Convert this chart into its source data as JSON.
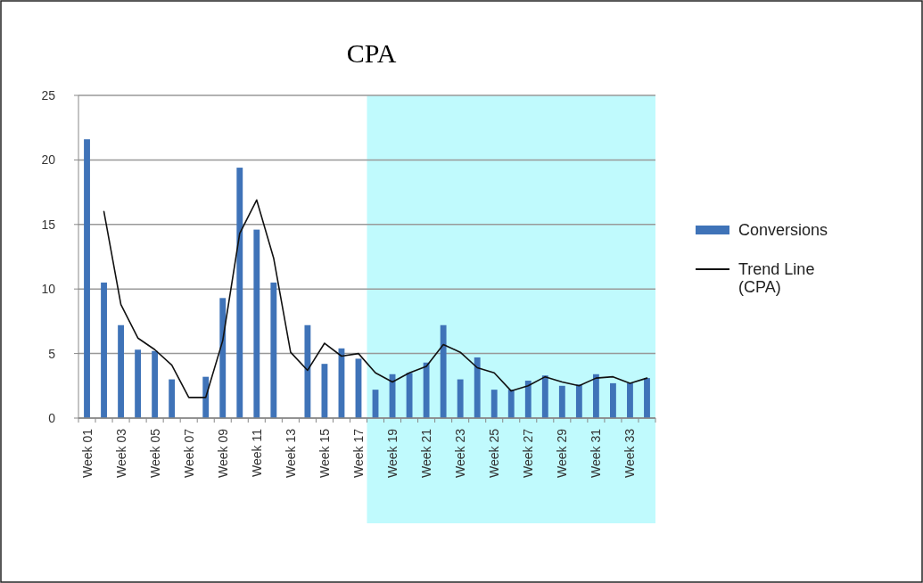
{
  "chart_data": {
    "type": "bar",
    "title": "CPA",
    "categories": [
      "Week 01",
      null,
      "Week 03",
      null,
      "Week 05",
      null,
      "Week 07",
      null,
      "Week 09",
      null,
      "Week 11",
      null,
      "Week 13",
      null,
      "Week 15",
      null,
      "Week 17",
      null,
      "Week 19",
      null,
      "Week 21",
      null,
      "Week 23",
      null,
      "Week 25",
      null,
      "Week 27",
      null,
      "Week 29",
      null,
      "Week 31",
      null,
      "Week 33",
      null
    ],
    "series": [
      {
        "name": "Conversions",
        "color": "#3f73b8",
        "values": [
          21.6,
          10.5,
          7.2,
          5.3,
          5.2,
          3.0,
          null,
          3.2,
          9.3,
          19.4,
          14.6,
          10.5,
          null,
          7.2,
          4.2,
          5.4,
          4.6,
          2.2,
          3.4,
          3.5,
          4.3,
          7.2,
          3.0,
          4.7,
          2.2,
          2.2,
          2.9,
          3.3,
          2.5,
          2.6,
          3.4,
          2.7,
          2.7,
          3.1
        ]
      },
      {
        "name": "Trend Line (CPA)",
        "type": "line",
        "color": "#111111",
        "values": [
          null,
          16.0,
          8.8,
          6.2,
          5.3,
          4.1,
          1.6,
          1.6,
          6.0,
          14.3,
          16.9,
          12.4,
          5.1,
          3.7,
          5.8,
          4.8,
          5.0,
          3.5,
          2.8,
          3.5,
          4.0,
          5.7,
          5.1,
          3.9,
          3.5,
          2.1,
          2.5,
          3.2,
          2.8,
          2.5,
          3.1,
          3.2,
          2.7,
          3.1
        ]
      }
    ],
    "ylim": [
      0,
      25
    ],
    "yticks": [
      0,
      5,
      10,
      15,
      20,
      25
    ],
    "grid": "y",
    "legend": "right"
  }
}
